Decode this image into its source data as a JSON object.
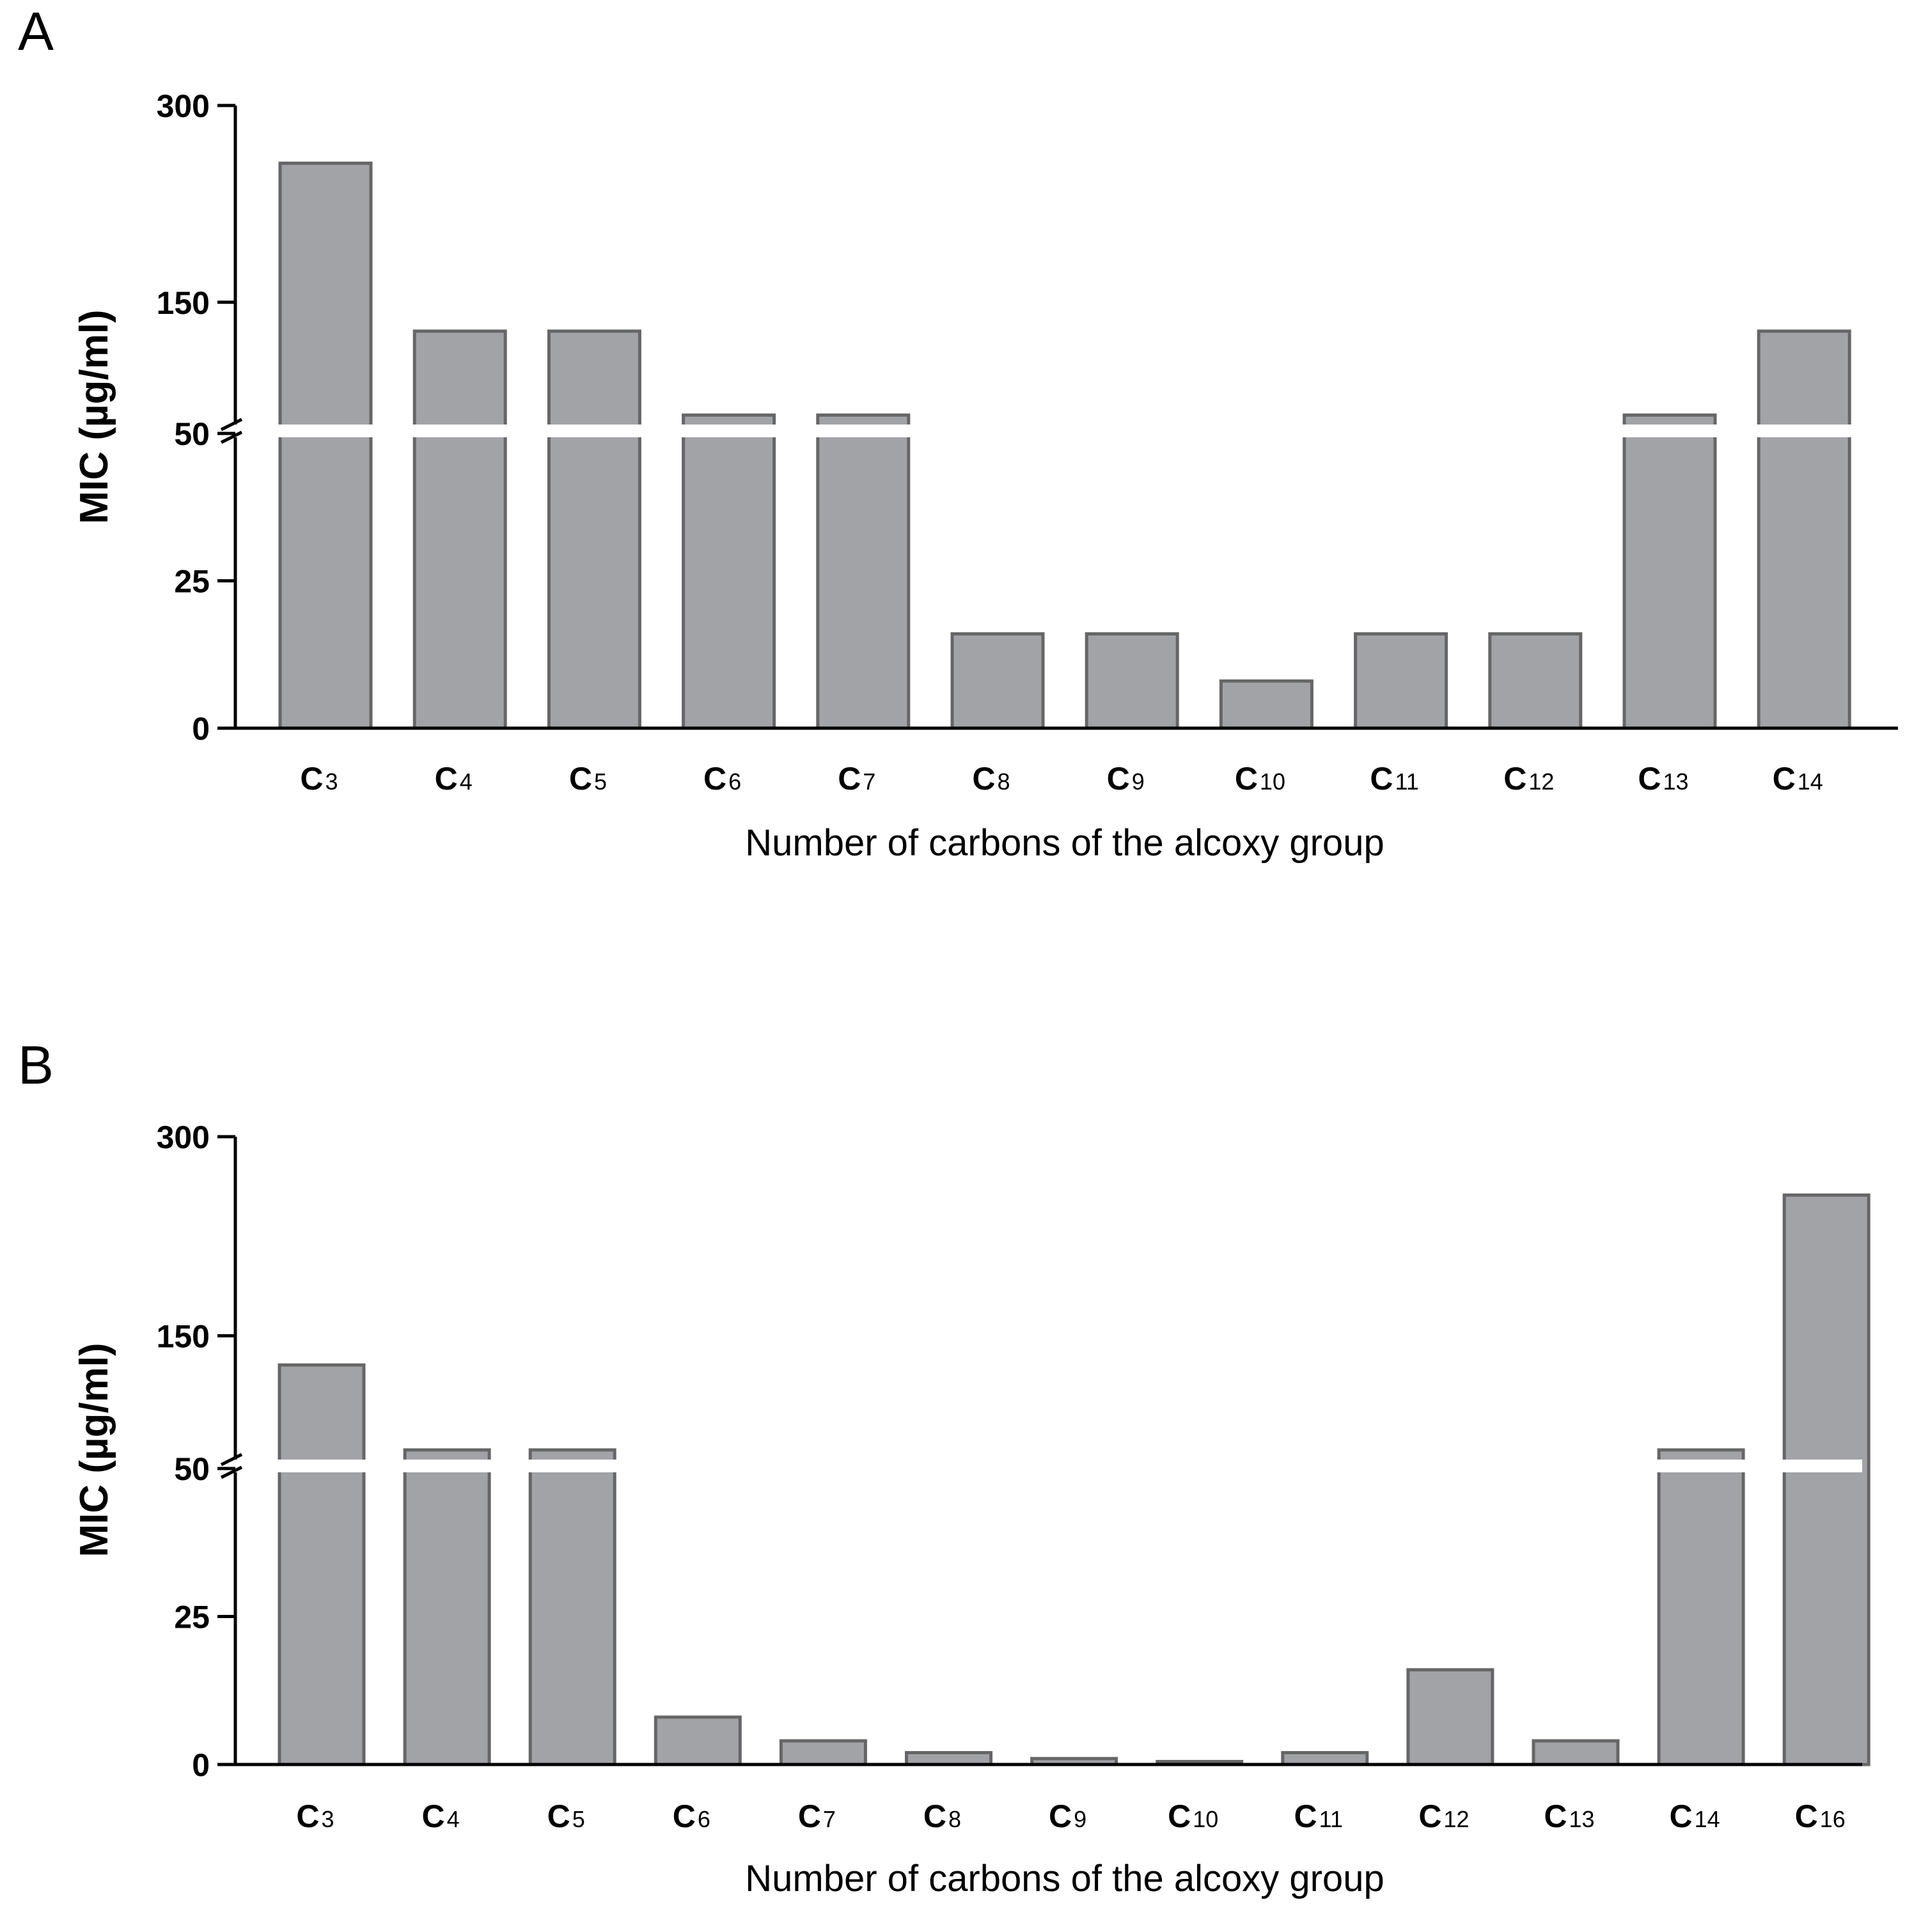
{
  "chart_data": [
    {
      "panel": "A",
      "type": "bar",
      "categories": [
        {
          "main": "C",
          "sub": "3"
        },
        {
          "main": "C",
          "sub": "4"
        },
        {
          "main": "C",
          "sub": "5"
        },
        {
          "main": "C",
          "sub": "6"
        },
        {
          "main": "C",
          "sub": "7"
        },
        {
          "main": "C",
          "sub": "8"
        },
        {
          "main": "C",
          "sub": "9"
        },
        {
          "main": "C",
          "sub": "10"
        },
        {
          "main": "C",
          "sub": "11"
        },
        {
          "main": "C",
          "sub": "12"
        },
        {
          "main": "C",
          "sub": "13"
        },
        {
          "main": "C",
          "sub": "14"
        }
      ],
      "values": [
        256,
        128,
        128,
        64,
        64,
        16,
        16,
        8,
        16,
        16,
        64,
        128
      ],
      "ylabel": "MIC (µg/ml)",
      "xlabel": "Number of carbons of the alcoxy group",
      "yticks": [
        "0",
        "25",
        "50",
        "150",
        "300"
      ],
      "axis_break": {
        "lower_segment": [
          0,
          50
        ],
        "upper_segment": [
          50,
          300
        ]
      }
    },
    {
      "panel": "B",
      "type": "bar",
      "categories": [
        {
          "main": "C",
          "sub": "3"
        },
        {
          "main": "C",
          "sub": "4"
        },
        {
          "main": "C",
          "sub": "5"
        },
        {
          "main": "C",
          "sub": "6"
        },
        {
          "main": "C",
          "sub": "7"
        },
        {
          "main": "C",
          "sub": "8"
        },
        {
          "main": "C",
          "sub": "9"
        },
        {
          "main": "C",
          "sub": "10"
        },
        {
          "main": "C",
          "sub": "11"
        },
        {
          "main": "C",
          "sub": "12"
        },
        {
          "main": "C",
          "sub": "13"
        },
        {
          "main": "C",
          "sub": "14"
        },
        {
          "main": "C",
          "sub": "16"
        }
      ],
      "values": [
        128,
        64,
        64,
        8,
        4,
        2,
        1,
        0.5,
        2,
        16,
        4,
        64,
        256
      ],
      "ylabel": "MIC (µg/ml)",
      "xlabel": "Number of carbons of the alcoxy group",
      "yticks": [
        "0",
        "25",
        "50",
        "150",
        "300"
      ],
      "axis_break": {
        "lower_segment": [
          0,
          50
        ],
        "upper_segment": [
          50,
          300
        ]
      }
    }
  ]
}
